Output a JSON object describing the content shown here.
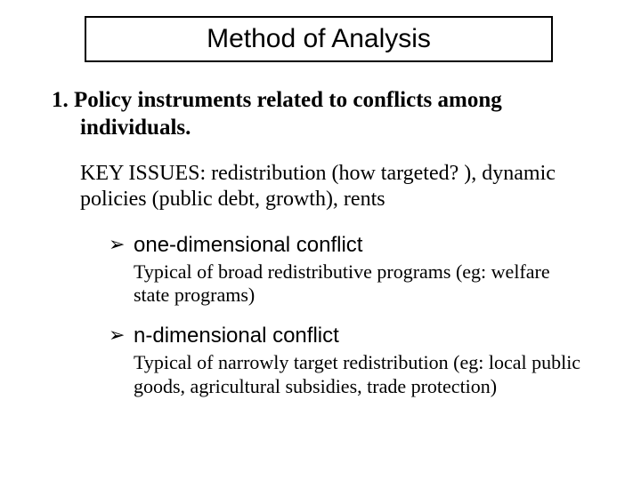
{
  "colors": {
    "background": "#ffffff",
    "text": "#000000",
    "title_border": "#000000"
  },
  "fonts": {
    "title_family": "Comic Sans MS",
    "body_serif": "Times New Roman",
    "bullet_sans": "Arial",
    "title_size_pt": 30,
    "heading_size_pt": 25,
    "key_issues_size_pt": 24,
    "bullet_title_size_pt": 24,
    "bullet_desc_size_pt": 22
  },
  "title": "Method of Analysis",
  "heading_line1": "1. Policy instruments related to conflicts among",
  "heading_line2": "individuals.",
  "key_issues": "KEY ISSUES: redistribution (how targeted? ), dynamic policies (public debt, growth), rents",
  "bullets": [
    {
      "marker": "➢",
      "title": "one-dimensional conflict",
      "desc": "Typical of broad redistributive programs (eg: welfare state programs)"
    },
    {
      "marker": "➢",
      "title": "n-dimensional conflict",
      "desc": "Typical of narrowly target redistribution (eg: local public goods, agricultural subsidies, trade protection)"
    }
  ]
}
